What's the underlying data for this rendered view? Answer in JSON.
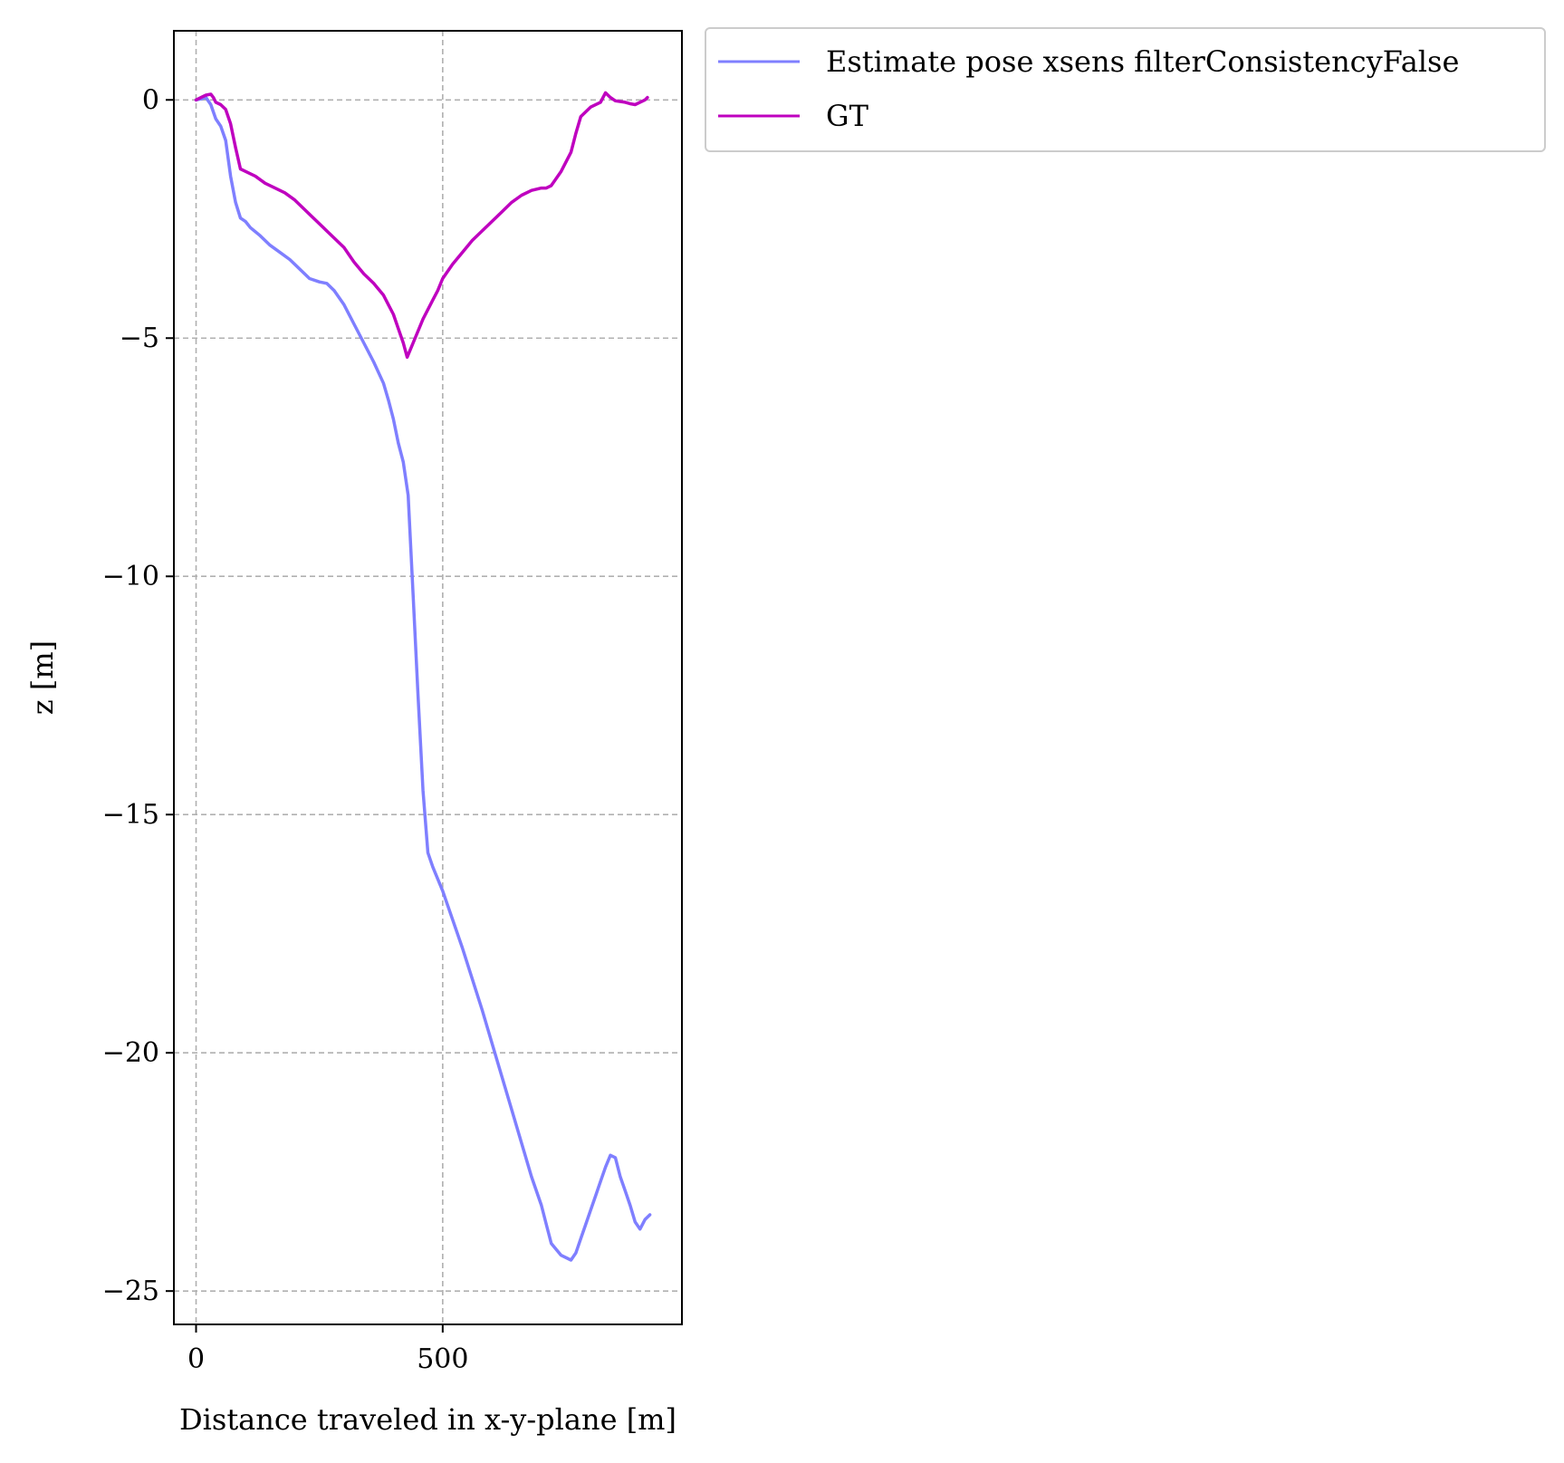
{
  "chart_data": {
    "type": "line",
    "xlabel": "Distance traveled in x-y-plane [m]",
    "ylabel": "z [m]",
    "xlim": [
      -45,
      985
    ],
    "ylim": [
      -25.7,
      1.45
    ],
    "xticks": [
      0,
      500
    ],
    "yticks": [
      0,
      -5,
      -10,
      -15,
      -20,
      -25
    ],
    "xtick_labels": [
      "0",
      "500"
    ],
    "ytick_labels": [
      "0",
      "−5",
      "−10",
      "−15",
      "−20",
      "−25"
    ],
    "grid": true,
    "legend_position": "outside-top-right",
    "series": [
      {
        "name": "Estimate pose xsens filterConsistencyFalse",
        "color": "#7f7fff",
        "points": [
          [
            0,
            0
          ],
          [
            10,
            0.02
          ],
          [
            20,
            0.05
          ],
          [
            30,
            -0.1
          ],
          [
            40,
            -0.4
          ],
          [
            50,
            -0.55
          ],
          [
            60,
            -0.85
          ],
          [
            70,
            -1.6
          ],
          [
            80,
            -2.15
          ],
          [
            90,
            -2.48
          ],
          [
            100,
            -2.55
          ],
          [
            110,
            -2.68
          ],
          [
            130,
            -2.85
          ],
          [
            150,
            -3.05
          ],
          [
            170,
            -3.2
          ],
          [
            190,
            -3.35
          ],
          [
            210,
            -3.55
          ],
          [
            230,
            -3.75
          ],
          [
            250,
            -3.82
          ],
          [
            265,
            -3.85
          ],
          [
            280,
            -4.0
          ],
          [
            300,
            -4.3
          ],
          [
            320,
            -4.7
          ],
          [
            340,
            -5.1
          ],
          [
            360,
            -5.5
          ],
          [
            380,
            -5.95
          ],
          [
            390,
            -6.3
          ],
          [
            400,
            -6.7
          ],
          [
            410,
            -7.2
          ],
          [
            420,
            -7.6
          ],
          [
            430,
            -8.3
          ],
          [
            440,
            -10.4
          ],
          [
            450,
            -12.5
          ],
          [
            460,
            -14.5
          ],
          [
            470,
            -15.8
          ],
          [
            480,
            -16.1
          ],
          [
            500,
            -16.6
          ],
          [
            520,
            -17.2
          ],
          [
            540,
            -17.8
          ],
          [
            560,
            -18.45
          ],
          [
            580,
            -19.1
          ],
          [
            600,
            -19.8
          ],
          [
            620,
            -20.5
          ],
          [
            640,
            -21.2
          ],
          [
            660,
            -21.9
          ],
          [
            680,
            -22.6
          ],
          [
            700,
            -23.2
          ],
          [
            710,
            -23.6
          ],
          [
            720,
            -24.0
          ],
          [
            740,
            -24.25
          ],
          [
            760,
            -24.35
          ],
          [
            770,
            -24.2
          ],
          [
            780,
            -23.9
          ],
          [
            790,
            -23.6
          ],
          [
            800,
            -23.3
          ],
          [
            810,
            -23.0
          ],
          [
            820,
            -22.7
          ],
          [
            830,
            -22.4
          ],
          [
            840,
            -22.15
          ],
          [
            850,
            -22.2
          ],
          [
            860,
            -22.6
          ],
          [
            870,
            -22.9
          ],
          [
            880,
            -23.2
          ],
          [
            890,
            -23.55
          ],
          [
            900,
            -23.7
          ],
          [
            910,
            -23.5
          ],
          [
            920,
            -23.4
          ]
        ]
      },
      {
        "name": "GT",
        "color": "#bf00bf",
        "points": [
          [
            0,
            0
          ],
          [
            10,
            0.05
          ],
          [
            20,
            0.1
          ],
          [
            30,
            0.12
          ],
          [
            35,
            0.05
          ],
          [
            40,
            -0.05
          ],
          [
            50,
            -0.1
          ],
          [
            60,
            -0.2
          ],
          [
            70,
            -0.5
          ],
          [
            80,
            -1.0
          ],
          [
            90,
            -1.45
          ],
          [
            100,
            -1.5
          ],
          [
            120,
            -1.6
          ],
          [
            140,
            -1.75
          ],
          [
            160,
            -1.85
          ],
          [
            180,
            -1.95
          ],
          [
            200,
            -2.1
          ],
          [
            220,
            -2.3
          ],
          [
            240,
            -2.5
          ],
          [
            260,
            -2.7
          ],
          [
            280,
            -2.9
          ],
          [
            300,
            -3.1
          ],
          [
            320,
            -3.4
          ],
          [
            340,
            -3.65
          ],
          [
            360,
            -3.85
          ],
          [
            380,
            -4.1
          ],
          [
            390,
            -4.3
          ],
          [
            400,
            -4.5
          ],
          [
            410,
            -4.8
          ],
          [
            420,
            -5.1
          ],
          [
            428,
            -5.4
          ],
          [
            440,
            -5.1
          ],
          [
            460,
            -4.6
          ],
          [
            480,
            -4.2
          ],
          [
            490,
            -4.0
          ],
          [
            500,
            -3.75
          ],
          [
            520,
            -3.45
          ],
          [
            540,
            -3.2
          ],
          [
            560,
            -2.95
          ],
          [
            580,
            -2.75
          ],
          [
            600,
            -2.55
          ],
          [
            620,
            -2.35
          ],
          [
            640,
            -2.15
          ],
          [
            660,
            -2.0
          ],
          [
            680,
            -1.9
          ],
          [
            700,
            -1.85
          ],
          [
            710,
            -1.85
          ],
          [
            720,
            -1.8
          ],
          [
            740,
            -1.5
          ],
          [
            760,
            -1.1
          ],
          [
            770,
            -0.7
          ],
          [
            780,
            -0.35
          ],
          [
            800,
            -0.15
          ],
          [
            820,
            -0.05
          ],
          [
            830,
            0.15
          ],
          [
            840,
            0.05
          ],
          [
            850,
            -0.02
          ],
          [
            870,
            -0.05
          ],
          [
            880,
            -0.08
          ],
          [
            890,
            -0.1
          ],
          [
            900,
            -0.05
          ],
          [
            910,
            0.0
          ],
          [
            915,
            0.05
          ]
        ]
      }
    ]
  }
}
